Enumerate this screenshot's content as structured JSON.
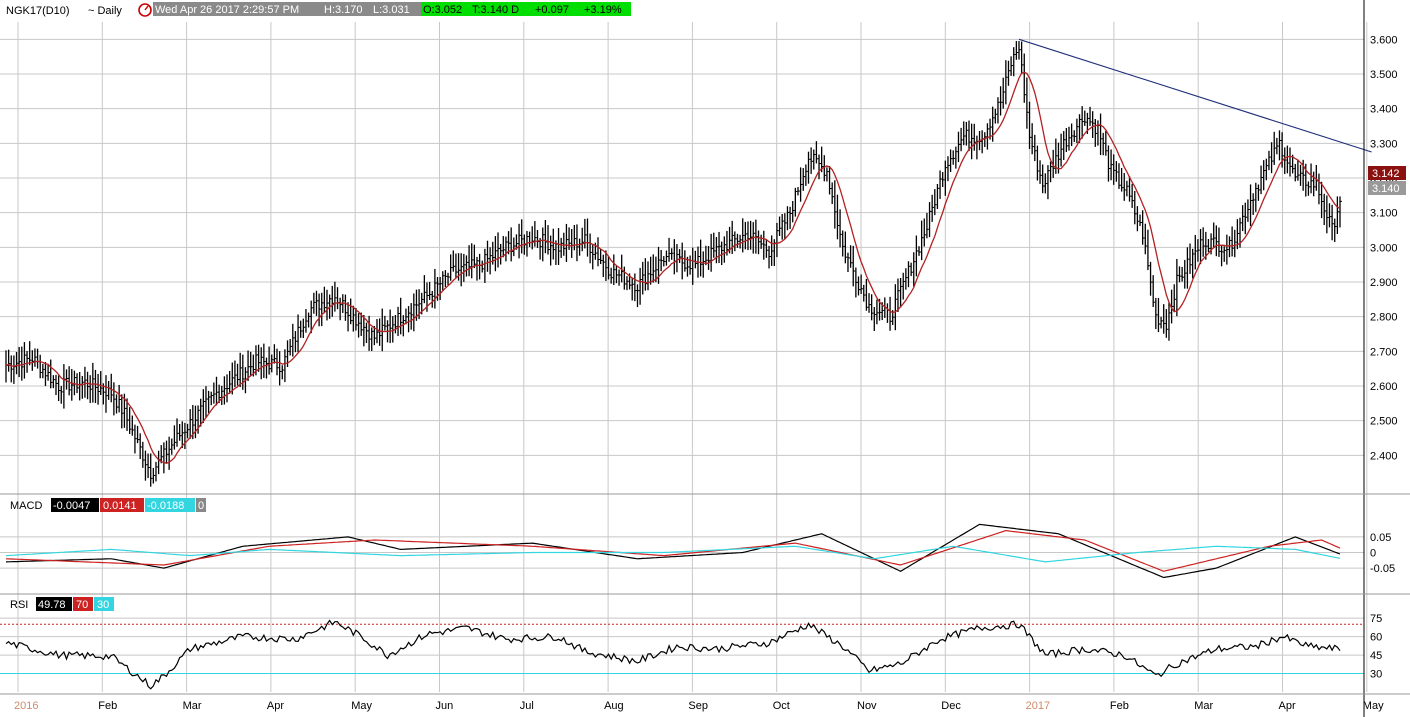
{
  "colors": {
    "background": "#ffffff",
    "grid": "#c8c8c8",
    "bars": "#000000",
    "moving_average": "#b22222",
    "trendline": "#1f2f7a",
    "macd_line": "#000000",
    "signal_line": "#cc2222",
    "histogram_line": "#33d6e0",
    "rsi_line": "#000000",
    "rsi_upper": "#cc2222",
    "rsi_lower": "#33d6e0",
    "header_green": "#00dd00",
    "header_gray": "#888888"
  },
  "header": {
    "symbol": "NGK17(D10)",
    "period": "~ Daily",
    "datetime": "Wed Apr 26 2017 2:29:57 PM",
    "high": "H:3.170",
    "low": "L:3.031",
    "open": "O:3.052",
    "last": "T:3.140 D",
    "change": "+0.097",
    "change_pct": "+3.19%"
  },
  "macd_labels": {
    "title": "MACD",
    "macd": "-0.0047",
    "signal": "0.0141",
    "histogram": "-0.0188",
    "zero": "0"
  },
  "rsi_labels": {
    "title": "RSI",
    "value": "49.78",
    "upper": "70",
    "lower": "30"
  },
  "price_tags": {
    "last": "3.142",
    "close": "3.140"
  },
  "chart_data": [
    {
      "type": "ohlc-bar",
      "title": "NGK17(D10) ~ Daily",
      "ylim": [
        2.3,
        3.65
      ],
      "y_ticks": [
        "2.400",
        "2.500",
        "2.600",
        "2.700",
        "2.800",
        "2.900",
        "3.000",
        "3.100",
        "3.200",
        "3.300",
        "3.400",
        "3.500",
        "3.600"
      ],
      "x_months": [
        "2016",
        "Feb",
        "Mar",
        "Apr",
        "May",
        "Jun",
        "Jul",
        "Aug",
        "Sep",
        "Oct",
        "Nov",
        "Dec",
        "2017",
        "Feb",
        "Mar",
        "Apr",
        "May"
      ],
      "grid": true,
      "close_anchors": [
        [
          0,
          2.66
        ],
        [
          10,
          2.68
        ],
        [
          20,
          2.6
        ],
        [
          30,
          2.61
        ],
        [
          40,
          2.58
        ],
        [
          45,
          2.52
        ],
        [
          55,
          2.35
        ],
        [
          65,
          2.45
        ],
        [
          80,
          2.58
        ],
        [
          95,
          2.67
        ],
        [
          105,
          2.66
        ],
        [
          115,
          2.82
        ],
        [
          125,
          2.86
        ],
        [
          132,
          2.8
        ],
        [
          140,
          2.74
        ],
        [
          150,
          2.8
        ],
        [
          160,
          2.86
        ],
        [
          170,
          2.93
        ],
        [
          180,
          2.95
        ],
        [
          190,
          3.0
        ],
        [
          200,
          3.03
        ],
        [
          210,
          3.0
        ],
        [
          220,
          3.02
        ],
        [
          230,
          2.93
        ],
        [
          240,
          2.89
        ],
        [
          250,
          2.97
        ],
        [
          262,
          2.95
        ],
        [
          272,
          3.0
        ],
        [
          282,
          3.04
        ],
        [
          290,
          2.99
        ],
        [
          298,
          3.1
        ],
        [
          305,
          3.26
        ],
        [
          312,
          3.22
        ],
        [
          318,
          3.0
        ],
        [
          328,
          2.83
        ],
        [
          336,
          2.8
        ],
        [
          342,
          2.91
        ],
        [
          350,
          3.06
        ],
        [
          357,
          3.24
        ],
        [
          364,
          3.32
        ],
        [
          371,
          3.32
        ],
        [
          378,
          3.42
        ],
        [
          382,
          3.53
        ],
        [
          385,
          3.58
        ],
        [
          389,
          3.32
        ],
        [
          394,
          3.18
        ],
        [
          402,
          3.3
        ],
        [
          410,
          3.38
        ],
        [
          415,
          3.34
        ],
        [
          420,
          3.22
        ],
        [
          426,
          3.16
        ],
        [
          432,
          3.04
        ],
        [
          437,
          2.8
        ],
        [
          441,
          2.78
        ],
        [
          445,
          2.9
        ],
        [
          455,
          3.02
        ],
        [
          465,
          3.0
        ],
        [
          475,
          3.17
        ],
        [
          484,
          3.3
        ],
        [
          490,
          3.2
        ],
        [
          498,
          3.18
        ],
        [
          504,
          3.05
        ],
        [
          507,
          3.14
        ]
      ],
      "moving_average_period": 10,
      "trendline": {
        "from": [
          385,
          3.6
        ],
        "to": [
          519,
          3.275
        ]
      }
    },
    {
      "type": "line",
      "title": "MACD",
      "series": [
        {
          "name": "MACD",
          "anchors": [
            [
              0,
              -0.03
            ],
            [
              40,
              -0.02
            ],
            [
              60,
              -0.05
            ],
            [
              90,
              0.02
            ],
            [
              130,
              0.05
            ],
            [
              150,
              0.01
            ],
            [
              200,
              0.03
            ],
            [
              240,
              -0.02
            ],
            [
              280,
              0.0
            ],
            [
              310,
              0.06
            ],
            [
              340,
              -0.06
            ],
            [
              370,
              0.09
            ],
            [
              400,
              0.06
            ],
            [
              420,
              -0.01
            ],
            [
              440,
              -0.08
            ],
            [
              460,
              -0.05
            ],
            [
              490,
              0.05
            ],
            [
              507,
              -0.0047
            ]
          ]
        },
        {
          "name": "Signal",
          "anchors": [
            [
              0,
              -0.02
            ],
            [
              60,
              -0.04
            ],
            [
              100,
              0.02
            ],
            [
              140,
              0.04
            ],
            [
              200,
              0.02
            ],
            [
              250,
              -0.01
            ],
            [
              300,
              0.03
            ],
            [
              340,
              -0.04
            ],
            [
              380,
              0.07
            ],
            [
              410,
              0.04
            ],
            [
              440,
              -0.06
            ],
            [
              480,
              0.02
            ],
            [
              500,
              0.04
            ],
            [
              507,
              0.0141
            ]
          ]
        },
        {
          "name": "Histogram",
          "anchors": [
            [
              0,
              -0.01
            ],
            [
              40,
              0.01
            ],
            [
              70,
              -0.01
            ],
            [
              100,
              0.01
            ],
            [
              150,
              -0.01
            ],
            [
              200,
              0.0
            ],
            [
              250,
              0.0
            ],
            [
              300,
              0.02
            ],
            [
              330,
              -0.02
            ],
            [
              360,
              0.02
            ],
            [
              395,
              -0.03
            ],
            [
              430,
              0.0
            ],
            [
              460,
              0.02
            ],
            [
              490,
              0.01
            ],
            [
              507,
              -0.0188
            ]
          ]
        }
      ],
      "ylim": [
        -0.12,
        0.12
      ],
      "y_ticks": [
        "0.05",
        "0",
        "-0.05"
      ]
    },
    {
      "type": "line",
      "title": "RSI",
      "series": [
        {
          "name": "RSI",
          "anchors": [
            [
              0,
              55
            ],
            [
              20,
              45
            ],
            [
              40,
              44
            ],
            [
              55,
              20
            ],
            [
              60,
              28
            ],
            [
              70,
              50
            ],
            [
              90,
              60
            ],
            [
              110,
              58
            ],
            [
              125,
              72
            ],
            [
              135,
              60
            ],
            [
              145,
              45
            ],
            [
              160,
              62
            ],
            [
              175,
              67
            ],
            [
              190,
              58
            ],
            [
              210,
              60
            ],
            [
              220,
              48
            ],
            [
              240,
              40
            ],
            [
              255,
              52
            ],
            [
              270,
              50
            ],
            [
              290,
              55
            ],
            [
              305,
              70
            ],
            [
              318,
              52
            ],
            [
              328,
              32
            ],
            [
              340,
              38
            ],
            [
              355,
              58
            ],
            [
              370,
              67
            ],
            [
              385,
              70
            ],
            [
              395,
              45
            ],
            [
              410,
              50
            ],
            [
              425,
              45
            ],
            [
              437,
              28
            ],
            [
              445,
              38
            ],
            [
              460,
              50
            ],
            [
              475,
              52
            ],
            [
              485,
              60
            ],
            [
              495,
              52
            ],
            [
              507,
              49.78
            ]
          ]
        }
      ],
      "ylim": [
        15,
        80
      ],
      "y_ticks": [
        "75",
        "60",
        "45",
        "30"
      ],
      "levels": [
        70,
        30
      ]
    }
  ]
}
